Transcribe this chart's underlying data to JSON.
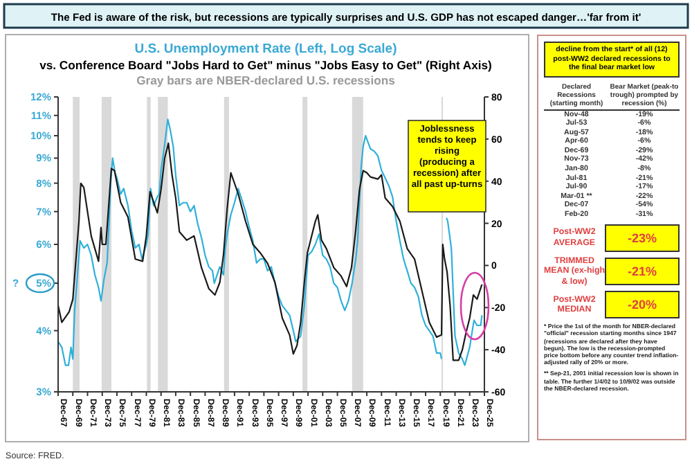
{
  "chart_data": [
    {
      "type": "line",
      "title": "U.S. Unemployment Rate (Left, Log Scale)",
      "subtitle": "vs. Conference Board \"Jobs Hard to Get\" minus \"Jobs Easy to Get\" (Right Axis)",
      "annotations": [
        "The Fed is aware of the risk, but recessions are typically surprises and U.S. GDP has not escaped danger…'far from it'",
        "Gray bars are NBER-declared U.S. recessions",
        "?",
        "Joblessness tends to keep rising (producing a recession) after all past up-turns",
        "Source: FRED."
      ],
      "series": [
        {
          "color": "#2fb0d9",
          "axis": "y",
          "x": [
            "1967-12",
            "1968-06",
            "1968-12",
            "1969-05",
            "1969-09",
            "1969-12",
            "1970-03",
            "1970-06",
            "1970-09",
            "1970-12",
            "1971-06",
            "1971-12",
            "1972-06",
            "1972-12",
            "1973-06",
            "1973-10",
            "1974-03",
            "1974-08",
            "1974-11",
            "1975-02",
            "1975-05",
            "1975-09",
            "1975-12",
            "1976-06",
            "1976-11",
            "1977-06",
            "1977-12",
            "1978-06",
            "1978-12",
            "1979-05",
            "1979-12",
            "1980-03",
            "1980-07",
            "1980-12",
            "1981-06",
            "1981-09",
            "1981-12",
            "1982-06",
            "1982-11",
            "1983-03",
            "1983-08",
            "1983-12",
            "1984-06",
            "1984-12",
            "1985-06",
            "1985-12",
            "1986-06",
            "1986-12",
            "1987-06",
            "1987-12",
            "1988-06",
            "1988-12",
            "1989-03",
            "1989-12",
            "1990-06",
            "1990-09",
            "1990-12",
            "1991-06",
            "1991-12",
            "1992-06",
            "1992-12",
            "1993-06",
            "1993-12",
            "1994-06",
            "1994-12",
            "1995-06",
            "1995-12",
            "1996-06",
            "1996-12",
            "1997-06",
            "1997-12",
            "1998-06",
            "1998-12",
            "1999-06",
            "1999-12",
            "2000-04",
            "2000-12",
            "2001-06",
            "2001-12",
            "2002-06",
            "2002-12",
            "2003-06",
            "2003-12",
            "2004-06",
            "2004-12",
            "2005-06",
            "2005-12",
            "2006-06",
            "2006-12",
            "2007-06",
            "2007-12",
            "2008-06",
            "2008-09",
            "2008-12",
            "2009-03",
            "2009-06",
            "2009-10",
            "2010-06",
            "2010-12",
            "2011-06",
            "2011-12",
            "2012-06",
            "2012-12",
            "2013-06",
            "2013-12",
            "2014-06",
            "2014-12",
            "2015-06",
            "2015-12",
            "2016-06",
            "2016-12",
            "2017-06",
            "2017-12",
            "2018-06",
            "2018-12",
            "2019-06",
            "2019-12",
            "2020-02",
            "2020-04",
            "2020-10",
            "2020-12",
            "2021-06",
            "2021-12",
            "2022-06",
            "2022-12",
            "2023-04",
            "2023-12",
            "2024-07",
            "2024-12",
            "2025-06",
            "2025-08"
          ],
          "values": [
            3.8,
            3.7,
            3.4,
            3.4,
            3.7,
            3.5,
            4.4,
            4.9,
            5.5,
            6.1,
            5.9,
            6.0,
            5.7,
            5.2,
            4.9,
            4.6,
            5.1,
            5.5,
            6.6,
            8.1,
            9.0,
            8.4,
            8.2,
            7.6,
            7.8,
            7.2,
            6.4,
            5.9,
            6.0,
            5.6,
            6.0,
            6.3,
            7.8,
            7.2,
            7.5,
            7.6,
            8.5,
            9.6,
            10.8,
            10.3,
            9.5,
            8.3,
            7.2,
            7.3,
            7.3,
            7.0,
            7.2,
            6.6,
            6.2,
            5.7,
            5.4,
            5.3,
            5.0,
            5.4,
            5.2,
            5.9,
            6.3,
            6.9,
            7.3,
            7.8,
            7.4,
            7.0,
            6.5,
            6.1,
            5.5,
            5.6,
            5.6,
            5.3,
            5.4,
            5.0,
            4.7,
            4.5,
            4.4,
            4.3,
            4.0,
            3.8,
            3.9,
            4.5,
            5.7,
            5.8,
            6.0,
            6.3,
            5.7,
            5.6,
            5.4,
            5.0,
            4.9,
            4.6,
            4.4,
            4.6,
            5.0,
            5.6,
            6.1,
            7.3,
            8.7,
            9.5,
            10.0,
            9.4,
            9.3,
            9.1,
            8.5,
            8.2,
            7.9,
            7.5,
            6.7,
            6.1,
            5.6,
            5.3,
            5.0,
            4.9,
            4.7,
            4.3,
            4.1,
            4.0,
            3.9,
            3.6,
            3.6,
            3.5,
            null,
            6.8,
            6.7,
            5.9,
            3.9,
            3.6,
            3.5,
            3.4,
            3.7,
            4.2,
            4.1,
            4.1,
            4.3
          ]
        },
        {
          "color": "#1a1a1a",
          "axis": "y2",
          "x": [
            "1967-12",
            "1968-06",
            "1969-06",
            "1969-12",
            "1970-10",
            "1971-01",
            "1971-06",
            "1972-06",
            "1973-06",
            "1973-10",
            "1973-12",
            "1974-06",
            "1975-03",
            "1975-08",
            "1976-06",
            "1977-06",
            "1978-06",
            "1979-06",
            "1979-12",
            "1980-06",
            "1981-06",
            "1981-12",
            "1982-06",
            "1982-12",
            "1983-06",
            "1983-12",
            "1984-06",
            "1985-06",
            "1986-06",
            "1987-06",
            "1988-06",
            "1989-04",
            "1989-12",
            "1990-06",
            "1990-12",
            "1991-06",
            "1991-12",
            "1992-06",
            "1993-06",
            "1994-06",
            "1995-06",
            "1996-06",
            "1997-06",
            "1998-06",
            "1999-06",
            "1999-12",
            "2000-06",
            "2000-12",
            "2001-06",
            "2001-11",
            "2002-06",
            "2002-12",
            "2003-04",
            "2003-10",
            "2004-06",
            "2005-06",
            "2006-06",
            "2007-03",
            "2007-11",
            "2008-06",
            "2008-12",
            "2009-06",
            "2009-12",
            "2010-06",
            "2011-06",
            "2011-12",
            "2012-06",
            "2013-06",
            "2014-06",
            "2015-06",
            "2016-06",
            "2017-06",
            "2018-06",
            "2019-06",
            "2020-02",
            "2020-04",
            "2020-07",
            "2020-11",
            "2021-04",
            "2021-09",
            "2022-06",
            "2022-12",
            "2023-06",
            "2023-12",
            "2024-06",
            "2024-12",
            "2025-08"
          ],
          "values": [
            -19,
            -27,
            -22,
            -16,
            21,
            39,
            37,
            14,
            2,
            18,
            10,
            10,
            46,
            45,
            30,
            23,
            3,
            2,
            14,
            35,
            25,
            36,
            51,
            58,
            43,
            32,
            16,
            12,
            14,
            -1,
            -11,
            -14,
            -8,
            5,
            27,
            44,
            39,
            34,
            21,
            10,
            6,
            1,
            -8,
            -25,
            -33,
            -42,
            -38,
            -27,
            -8,
            6,
            14,
            21,
            24,
            12,
            8,
            -1,
            -5,
            -10,
            -1,
            17,
            36,
            45,
            44,
            42,
            41,
            43,
            32,
            28,
            21,
            8,
            3,
            -12,
            -27,
            -34,
            -33,
            10,
            3,
            -3,
            -19,
            -45,
            -45,
            -40,
            -32,
            -25,
            -14,
            -16,
            -9
          ]
        }
      ],
      "xlim": [
        "1967-12",
        "2025-12"
      ],
      "xticks": [
        {
          "value": "1967-12",
          "label": "Dec-67"
        },
        {
          "value": "1969-12",
          "label": "Dec-69"
        },
        {
          "value": "1971-12",
          "label": "Dec-71"
        },
        {
          "value": "1973-12",
          "label": "Dec-73"
        },
        {
          "value": "1975-12",
          "label": "Dec-75"
        },
        {
          "value": "1977-12",
          "label": "Dec-77"
        },
        {
          "value": "1979-12",
          "label": "Dec-79"
        },
        {
          "value": "1981-12",
          "label": "Dec-81"
        },
        {
          "value": "1983-12",
          "label": "Dec-83"
        },
        {
          "value": "1985-12",
          "label": "Dec-85"
        },
        {
          "value": "1987-12",
          "label": "Dec-87"
        },
        {
          "value": "1989-12",
          "label": "Dec-89"
        },
        {
          "value": "1991-12",
          "label": "Dec-91"
        },
        {
          "value": "1993-12",
          "label": "Dec-93"
        },
        {
          "value": "1995-12",
          "label": "Dec-95"
        },
        {
          "value": "1997-12",
          "label": "Dec-97"
        },
        {
          "value": "1999-12",
          "label": "Dec-99"
        },
        {
          "value": "2001-12",
          "label": "Dec-01"
        },
        {
          "value": "2003-12",
          "label": "Dec-03"
        },
        {
          "value": "2005-12",
          "label": "Dec-05"
        },
        {
          "value": "2007-12",
          "label": "Dec-07"
        },
        {
          "value": "2009-12",
          "label": "Dec-09"
        },
        {
          "value": "2011-12",
          "label": "Dec-11"
        },
        {
          "value": "2013-12",
          "label": "Dec-13"
        },
        {
          "value": "2015-12",
          "label": "Dec-15"
        },
        {
          "value": "2017-12",
          "label": "Dec-17"
        },
        {
          "value": "2019-12",
          "label": "Dec-19"
        },
        {
          "value": "2021-12",
          "label": "Dec-21"
        },
        {
          "value": "2023-12",
          "label": "Dec-23"
        },
        {
          "value": "2025-12",
          "label": "Dec-25"
        }
      ],
      "ylim": [
        3,
        12
      ],
      "log": "y",
      "yticks": [
        {
          "value": 3,
          "label": "3%"
        },
        {
          "value": 4,
          "label": "4%"
        },
        {
          "value": 5,
          "label": "5%"
        },
        {
          "value": 6,
          "label": "6%"
        },
        {
          "value": 7,
          "label": "7%"
        },
        {
          "value": 8,
          "label": "8%"
        },
        {
          "value": 9,
          "label": "9%"
        },
        {
          "value": 10,
          "label": "10%"
        },
        {
          "value": 11,
          "label": "11%"
        },
        {
          "value": 12,
          "label": "12%"
        }
      ],
      "y2lim": [
        -60,
        80
      ],
      "y2ticks": [
        -60,
        -40,
        -20,
        0,
        20,
        40,
        60,
        80
      ],
      "bands": [
        {
          "axis": "x",
          "from": "1969-12",
          "to": "1970-11",
          "color": "#d9d9d9"
        },
        {
          "axis": "x",
          "from": "1973-11",
          "to": "1975-03",
          "color": "#d9d9d9"
        },
        {
          "axis": "x",
          "from": "1980-01",
          "to": "1980-07",
          "color": "#d9d9d9"
        },
        {
          "axis": "x",
          "from": "1981-07",
          "to": "1982-11",
          "color": "#d9d9d9"
        },
        {
          "axis": "x",
          "from": "1990-07",
          "to": "1991-03",
          "color": "#d9d9d9"
        },
        {
          "axis": "x",
          "from": "2001-03",
          "to": "2001-11",
          "color": "#d9d9d9"
        },
        {
          "axis": "x",
          "from": "2007-12",
          "to": "2009-06",
          "color": "#d9d9d9"
        },
        {
          "axis": "x",
          "from": "2020-02",
          "to": "2020-04",
          "color": "#d9d9d9"
        }
      ],
      "grid": false,
      "line_style": "solid",
      "marker": "none"
    },
    {
      "type": "other",
      "title": "decline from the start* of all (12) post-WW2 declared recessions to the final bear market low",
      "xlabel": "Declared Recessions (starting month)",
      "ylabel": "Bear Market (peak-to trough) prompted by recession (%)",
      "categories": [
        "Nov-48",
        "Jul-53",
        "Aug-57",
        "Apr-60",
        "Dec-69",
        "Nov-73",
        "Jan-80",
        "Jul-81",
        "Jul-90",
        "Mar-01 **",
        "Dec-07",
        "Feb-20"
      ],
      "value_labels": [
        "-19%",
        "-6%",
        "-18%",
        "-6%",
        "-29%",
        "-42%",
        "-8%",
        "-21%",
        "-17%",
        "-22%",
        "-54%",
        "-31%"
      ],
      "annotations": [
        "Post-WW2 AVERAGE",
        "-23%",
        "TRIMMED MEAN (ex-high & low)",
        "-21%",
        "Post-WW2 MEDIAN",
        "-20%",
        "* Price the 1st of the month for NBER-declared \"official\" recession starting months since 1947 (recessions are declared after they have begun). The low is the recession-prompted price bottom before any counter trend inflation-adjusted rally of 20% or more.",
        "** Sep-21, 2001 initial recession low is shown in table. The further 1/4/02 to 10/9/02 was outside the NBER-declared recession."
      ]
    }
  ]
}
